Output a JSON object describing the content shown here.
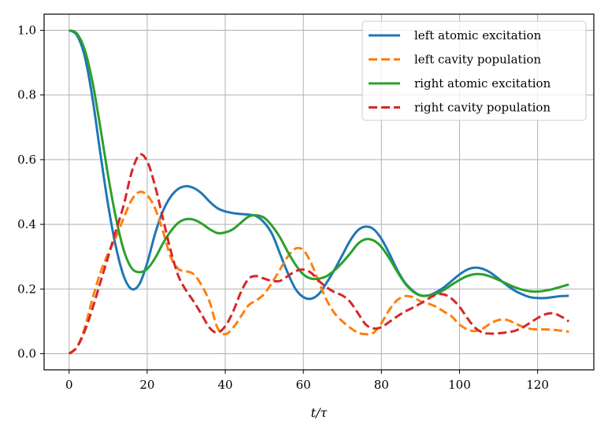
{
  "chart_data": {
    "type": "line",
    "xlabel": "t/τ",
    "ylabel": "",
    "xlim": [
      -6.4,
      134.4
    ],
    "ylim": [
      -0.05,
      1.05
    ],
    "xticks": [
      0,
      20,
      40,
      60,
      80,
      100,
      120
    ],
    "yticks": [
      0.0,
      0.2,
      0.4,
      0.6,
      0.8,
      1.0
    ],
    "xtick_labels": [
      "0",
      "20",
      "40",
      "60",
      "80",
      "100",
      "120"
    ],
    "ytick_labels": [
      "0.0",
      "0.2",
      "0.4",
      "0.6",
      "0.8",
      "1.0"
    ],
    "grid": true,
    "legend_position": "top-right",
    "series": [
      {
        "name": "left atomic excitation",
        "color": "#1f77b4",
        "dash": "solid",
        "points": [
          [
            0,
            1.0
          ],
          [
            2,
            0.985
          ],
          [
            4,
            0.92
          ],
          [
            6,
            0.79
          ],
          [
            8,
            0.62
          ],
          [
            10,
            0.46
          ],
          [
            12,
            0.33
          ],
          [
            14,
            0.24
          ],
          [
            16,
            0.2
          ],
          [
            18,
            0.215
          ],
          [
            20,
            0.28
          ],
          [
            22,
            0.37
          ],
          [
            24,
            0.44
          ],
          [
            26,
            0.485
          ],
          [
            28,
            0.51
          ],
          [
            30,
            0.518
          ],
          [
            32,
            0.512
          ],
          [
            34,
            0.495
          ],
          [
            36,
            0.47
          ],
          [
            38,
            0.45
          ],
          [
            40,
            0.44
          ],
          [
            43,
            0.433
          ],
          [
            46,
            0.43
          ],
          [
            48,
            0.425
          ],
          [
            50,
            0.405
          ],
          [
            52,
            0.37
          ],
          [
            54,
            0.31
          ],
          [
            56,
            0.25
          ],
          [
            58,
            0.2
          ],
          [
            60,
            0.175
          ],
          [
            62,
            0.17
          ],
          [
            64,
            0.185
          ],
          [
            66,
            0.22
          ],
          [
            68,
            0.26
          ],
          [
            70,
            0.305
          ],
          [
            72,
            0.35
          ],
          [
            74,
            0.382
          ],
          [
            76,
            0.393
          ],
          [
            78,
            0.385
          ],
          [
            80,
            0.355
          ],
          [
            82,
            0.31
          ],
          [
            84,
            0.26
          ],
          [
            86,
            0.22
          ],
          [
            88,
            0.195
          ],
          [
            90,
            0.18
          ],
          [
            92,
            0.18
          ],
          [
            94,
            0.19
          ],
          [
            96,
            0.205
          ],
          [
            98,
            0.225
          ],
          [
            100,
            0.245
          ],
          [
            102,
            0.26
          ],
          [
            104,
            0.266
          ],
          [
            106,
            0.262
          ],
          [
            108,
            0.25
          ],
          [
            110,
            0.232
          ],
          [
            112,
            0.213
          ],
          [
            114,
            0.196
          ],
          [
            116,
            0.184
          ],
          [
            118,
            0.175
          ],
          [
            120,
            0.172
          ],
          [
            122,
            0.172
          ],
          [
            124,
            0.175
          ],
          [
            126,
            0.178
          ],
          [
            128,
            0.179
          ]
        ]
      },
      {
        "name": "left cavity population",
        "color": "#ff7f0e",
        "dash": "dashed",
        "points": [
          [
            0,
            0.0
          ],
          [
            2,
            0.02
          ],
          [
            4,
            0.08
          ],
          [
            6,
            0.17
          ],
          [
            8,
            0.25
          ],
          [
            10,
            0.31
          ],
          [
            12,
            0.36
          ],
          [
            14,
            0.42
          ],
          [
            16,
            0.475
          ],
          [
            18,
            0.5
          ],
          [
            20,
            0.49
          ],
          [
            22,
            0.45
          ],
          [
            24,
            0.38
          ],
          [
            26,
            0.3
          ],
          [
            28,
            0.262
          ],
          [
            30,
            0.255
          ],
          [
            32,
            0.245
          ],
          [
            34,
            0.21
          ],
          [
            36,
            0.16
          ],
          [
            38,
            0.08
          ],
          [
            40,
            0.06
          ],
          [
            42,
            0.08
          ],
          [
            44,
            0.115
          ],
          [
            46,
            0.15
          ],
          [
            48,
            0.165
          ],
          [
            50,
            0.185
          ],
          [
            52,
            0.22
          ],
          [
            54,
            0.26
          ],
          [
            56,
            0.3
          ],
          [
            58,
            0.325
          ],
          [
            60,
            0.32
          ],
          [
            62,
            0.28
          ],
          [
            64,
            0.22
          ],
          [
            66,
            0.165
          ],
          [
            68,
            0.125
          ],
          [
            70,
            0.1
          ],
          [
            72,
            0.08
          ],
          [
            74,
            0.065
          ],
          [
            76,
            0.06
          ],
          [
            78,
            0.065
          ],
          [
            80,
            0.095
          ],
          [
            82,
            0.135
          ],
          [
            84,
            0.165
          ],
          [
            86,
            0.178
          ],
          [
            88,
            0.175
          ],
          [
            90,
            0.162
          ],
          [
            92,
            0.155
          ],
          [
            94,
            0.145
          ],
          [
            96,
            0.13
          ],
          [
            98,
            0.115
          ],
          [
            100,
            0.09
          ],
          [
            102,
            0.075
          ],
          [
            104,
            0.07
          ],
          [
            106,
            0.078
          ],
          [
            108,
            0.094
          ],
          [
            110,
            0.104
          ],
          [
            112,
            0.105
          ],
          [
            114,
            0.095
          ],
          [
            116,
            0.084
          ],
          [
            118,
            0.077
          ],
          [
            120,
            0.075
          ],
          [
            122,
            0.075
          ],
          [
            124,
            0.074
          ],
          [
            126,
            0.071
          ],
          [
            128,
            0.068
          ]
        ]
      },
      {
        "name": "right atomic excitation",
        "color": "#2ca02c",
        "dash": "solid",
        "points": [
          [
            0,
            1.0
          ],
          [
            2,
            0.99
          ],
          [
            4,
            0.94
          ],
          [
            6,
            0.84
          ],
          [
            8,
            0.7
          ],
          [
            10,
            0.55
          ],
          [
            12,
            0.42
          ],
          [
            14,
            0.32
          ],
          [
            16,
            0.265
          ],
          [
            18,
            0.252
          ],
          [
            20,
            0.262
          ],
          [
            22,
            0.295
          ],
          [
            24,
            0.34
          ],
          [
            26,
            0.378
          ],
          [
            28,
            0.405
          ],
          [
            30,
            0.416
          ],
          [
            32,
            0.414
          ],
          [
            34,
            0.402
          ],
          [
            36,
            0.385
          ],
          [
            38,
            0.373
          ],
          [
            40,
            0.375
          ],
          [
            42,
            0.385
          ],
          [
            44,
            0.405
          ],
          [
            46,
            0.424
          ],
          [
            48,
            0.428
          ],
          [
            50,
            0.42
          ],
          [
            52,
            0.395
          ],
          [
            54,
            0.36
          ],
          [
            56,
            0.315
          ],
          [
            58,
            0.275
          ],
          [
            60,
            0.245
          ],
          [
            62,
            0.232
          ],
          [
            64,
            0.232
          ],
          [
            66,
            0.24
          ],
          [
            68,
            0.258
          ],
          [
            70,
            0.282
          ],
          [
            72,
            0.31
          ],
          [
            74,
            0.34
          ],
          [
            76,
            0.354
          ],
          [
            78,
            0.35
          ],
          [
            80,
            0.33
          ],
          [
            82,
            0.295
          ],
          [
            84,
            0.255
          ],
          [
            86,
            0.218
          ],
          [
            88,
            0.193
          ],
          [
            90,
            0.18
          ],
          [
            92,
            0.18
          ],
          [
            94,
            0.185
          ],
          [
            96,
            0.197
          ],
          [
            98,
            0.213
          ],
          [
            100,
            0.228
          ],
          [
            102,
            0.24
          ],
          [
            104,
            0.246
          ],
          [
            106,
            0.245
          ],
          [
            108,
            0.238
          ],
          [
            110,
            0.228
          ],
          [
            112,
            0.217
          ],
          [
            114,
            0.206
          ],
          [
            116,
            0.198
          ],
          [
            118,
            0.193
          ],
          [
            120,
            0.192
          ],
          [
            122,
            0.195
          ],
          [
            124,
            0.2
          ],
          [
            126,
            0.207
          ],
          [
            128,
            0.214
          ]
        ]
      },
      {
        "name": "right cavity population",
        "color": "#d62728",
        "dash": "dashed",
        "points": [
          [
            0,
            0.0
          ],
          [
            2,
            0.02
          ],
          [
            4,
            0.07
          ],
          [
            6,
            0.14
          ],
          [
            8,
            0.22
          ],
          [
            10,
            0.3
          ],
          [
            12,
            0.38
          ],
          [
            14,
            0.46
          ],
          [
            16,
            0.56
          ],
          [
            18,
            0.615
          ],
          [
            20,
            0.595
          ],
          [
            22,
            0.52
          ],
          [
            24,
            0.42
          ],
          [
            26,
            0.32
          ],
          [
            28,
            0.24
          ],
          [
            30,
            0.195
          ],
          [
            32,
            0.16
          ],
          [
            34,
            0.12
          ],
          [
            36,
            0.08
          ],
          [
            38,
            0.065
          ],
          [
            40,
            0.085
          ],
          [
            42,
            0.13
          ],
          [
            44,
            0.19
          ],
          [
            46,
            0.232
          ],
          [
            48,
            0.24
          ],
          [
            50,
            0.232
          ],
          [
            52,
            0.225
          ],
          [
            54,
            0.225
          ],
          [
            56,
            0.24
          ],
          [
            58,
            0.255
          ],
          [
            60,
            0.26
          ],
          [
            62,
            0.25
          ],
          [
            64,
            0.225
          ],
          [
            66,
            0.205
          ],
          [
            68,
            0.19
          ],
          [
            70,
            0.18
          ],
          [
            72,
            0.16
          ],
          [
            74,
            0.125
          ],
          [
            76,
            0.09
          ],
          [
            78,
            0.078
          ],
          [
            80,
            0.082
          ],
          [
            82,
            0.098
          ],
          [
            84,
            0.115
          ],
          [
            86,
            0.13
          ],
          [
            88,
            0.142
          ],
          [
            90,
            0.155
          ],
          [
            92,
            0.17
          ],
          [
            94,
            0.182
          ],
          [
            96,
            0.183
          ],
          [
            98,
            0.17
          ],
          [
            100,
            0.145
          ],
          [
            102,
            0.11
          ],
          [
            104,
            0.08
          ],
          [
            106,
            0.065
          ],
          [
            108,
            0.062
          ],
          [
            110,
            0.063
          ],
          [
            112,
            0.066
          ],
          [
            114,
            0.07
          ],
          [
            116,
            0.08
          ],
          [
            118,
            0.095
          ],
          [
            120,
            0.11
          ],
          [
            122,
            0.122
          ],
          [
            124,
            0.125
          ],
          [
            126,
            0.115
          ],
          [
            128,
            0.1
          ]
        ]
      }
    ]
  }
}
